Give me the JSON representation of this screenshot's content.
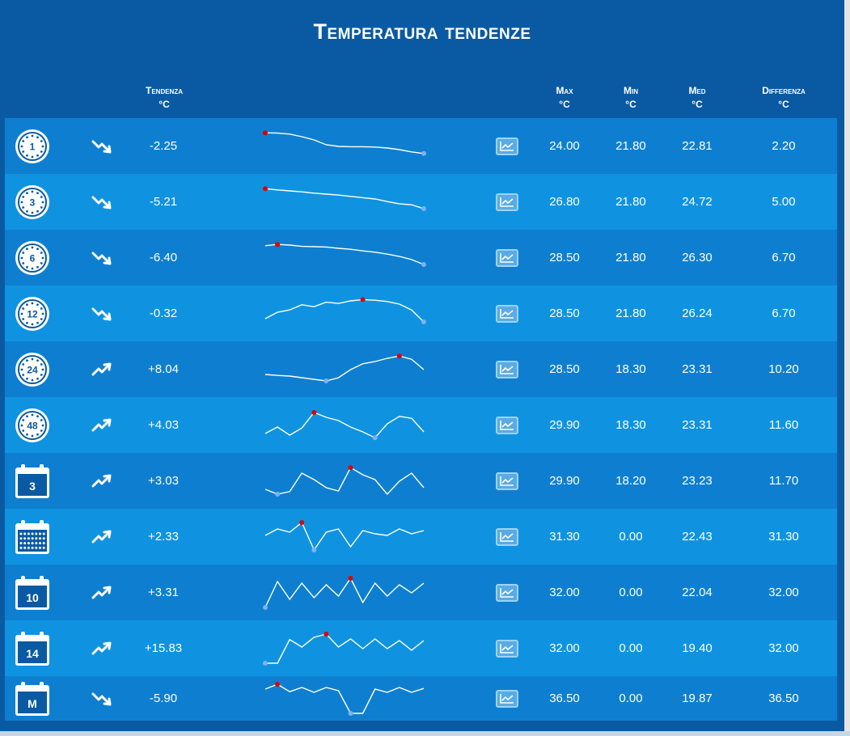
{
  "title": "Temperatura tendenze",
  "headers": {
    "tendenza": "Tendenza",
    "tendenza_unit": "°C",
    "max": "Max",
    "max_unit": "°C",
    "min": "Min",
    "min_unit": "°C",
    "med": "Med",
    "med_unit": "°C",
    "diff": "Differenza",
    "diff_unit": "°C"
  },
  "colors": {
    "panel": "#0a5aa3",
    "row_odd": "#0e7fd0",
    "row_even": "#0f93e1",
    "max_marker": "#e00000",
    "min_marker": "#7fb0f0"
  },
  "rows": [
    {
      "period_icon": "clock-icon",
      "period_label": "1",
      "trend": "down",
      "trend_icon": "trend-down-icon",
      "change": "-2.25",
      "max": "24.00",
      "min": "21.80",
      "med": "22.81",
      "diff": "2.20",
      "spark": [
        0.92,
        0.91,
        0.88,
        0.8,
        0.7,
        0.55,
        0.5,
        0.49,
        0.49,
        0.48,
        0.45,
        0.4,
        0.33,
        0.28
      ],
      "max_index": 0,
      "min_index": 13
    },
    {
      "period_icon": "clock-icon",
      "period_label": "3",
      "trend": "down",
      "trend_icon": "trend-down-icon",
      "change": "-5.21",
      "max": "26.80",
      "min": "21.80",
      "med": "24.72",
      "diff": "5.00",
      "spark": [
        0.92,
        0.88,
        0.85,
        0.82,
        0.78,
        0.75,
        0.72,
        0.68,
        0.64,
        0.6,
        0.52,
        0.45,
        0.42,
        0.3
      ],
      "max_index": 0,
      "min_index": 13
    },
    {
      "period_icon": "clock-icon",
      "period_label": "6",
      "trend": "down",
      "trend_icon": "trend-down-icon",
      "change": "-6.40",
      "max": "28.50",
      "min": "21.80",
      "med": "26.30",
      "diff": "6.70",
      "spark": [
        0.88,
        0.92,
        0.9,
        0.86,
        0.85,
        0.84,
        0.8,
        0.77,
        0.72,
        0.68,
        0.62,
        0.55,
        0.45,
        0.3
      ],
      "max_index": 1,
      "min_index": 13
    },
    {
      "period_icon": "clock-icon",
      "period_label": "12",
      "trend": "down",
      "trend_icon": "trend-down-icon",
      "change": "-0.32",
      "max": "28.50",
      "min": "21.80",
      "med": "26.24",
      "diff": "6.70",
      "spark": [
        0.35,
        0.55,
        0.62,
        0.78,
        0.72,
        0.86,
        0.82,
        0.9,
        0.94,
        0.92,
        0.88,
        0.8,
        0.62,
        0.25
      ],
      "max_index": 8,
      "min_index": 13
    },
    {
      "period_icon": "clock-icon",
      "period_label": "24",
      "trend": "up",
      "trend_icon": "trend-up-icon",
      "change": "+8.04",
      "max": "28.50",
      "min": "18.30",
      "med": "23.31",
      "diff": "10.20",
      "spark": [
        0.35,
        0.32,
        0.3,
        0.25,
        0.2,
        0.15,
        0.25,
        0.5,
        0.68,
        0.75,
        0.85,
        0.92,
        0.82,
        0.5
      ],
      "max_index": 11,
      "min_index": 5
    },
    {
      "period_icon": "clock-icon",
      "period_label": "48",
      "trend": "up",
      "trend_icon": "trend-up-icon",
      "change": "+4.03",
      "max": "29.90",
      "min": "18.30",
      "med": "23.31",
      "diff": "11.60",
      "spark": [
        0.25,
        0.45,
        0.2,
        0.42,
        0.9,
        0.75,
        0.65,
        0.45,
        0.3,
        0.12,
        0.55,
        0.78,
        0.72,
        0.3
      ],
      "max_index": 4,
      "min_index": 9
    },
    {
      "period_icon": "calendar-icon",
      "period_label": "3",
      "trend": "up",
      "trend_icon": "trend-up-icon",
      "change": "+3.03",
      "max": "29.90",
      "min": "18.20",
      "med": "23.23",
      "diff": "11.70",
      "spark": [
        0.25,
        0.1,
        0.18,
        0.75,
        0.55,
        0.3,
        0.2,
        0.92,
        0.7,
        0.55,
        0.1,
        0.5,
        0.75,
        0.3
      ],
      "max_index": 7,
      "min_index": 1
    },
    {
      "period_icon": "calendar-month-icon",
      "period_label": "",
      "trend": "up",
      "trend_icon": "trend-up-icon",
      "change": "+2.33",
      "max": "31.30",
      "min": "0.00",
      "med": "22.43",
      "diff": "31.30",
      "spark": [
        0.55,
        0.75,
        0.65,
        0.95,
        0.1,
        0.65,
        0.75,
        0.2,
        0.7,
        0.6,
        0.55,
        0.75,
        0.6,
        0.7
      ],
      "max_index": 3,
      "min_index": 4
    },
    {
      "period_icon": "calendar-icon",
      "period_label": "10",
      "trend": "up",
      "trend_icon": "trend-up-icon",
      "change": "+3.31",
      "max": "32.00",
      "min": "0.00",
      "med": "22.04",
      "diff": "32.00",
      "spark": [
        0.05,
        0.85,
        0.3,
        0.8,
        0.35,
        0.75,
        0.4,
        0.95,
        0.2,
        0.8,
        0.4,
        0.75,
        0.5,
        0.8
      ],
      "max_index": 7,
      "min_index": 0
    },
    {
      "period_icon": "calendar-icon",
      "period_label": "14",
      "trend": "up",
      "trend_icon": "trend-up-icon",
      "change": "+15.83",
      "max": "32.00",
      "min": "0.00",
      "med": "19.40",
      "diff": "32.00",
      "spark": [
        0.05,
        0.05,
        0.78,
        0.55,
        0.85,
        0.95,
        0.55,
        0.8,
        0.5,
        0.8,
        0.5,
        0.75,
        0.45,
        0.75
      ],
      "max_index": 5,
      "min_index": 0
    },
    {
      "period_icon": "calendar-icon",
      "period_label": "M",
      "trend": "down",
      "trend_icon": "trend-down-icon",
      "change": "-5.90",
      "max": "36.50",
      "min": "0.00",
      "med": "19.87",
      "diff": "36.50",
      "spark": [
        0.8,
        0.95,
        0.72,
        0.85,
        0.7,
        0.85,
        0.75,
        0.05,
        0.05,
        0.8,
        0.7,
        0.85,
        0.7,
        0.82
      ],
      "max_index": 1,
      "min_index": 7
    }
  ]
}
